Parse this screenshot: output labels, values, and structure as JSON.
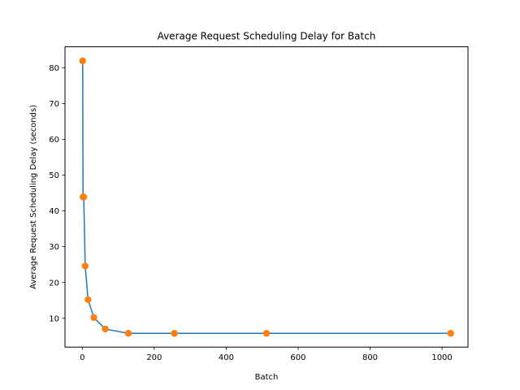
{
  "chart_data": {
    "type": "line",
    "title": "Average Request Scheduling Delay for Batch",
    "xlabel": "Batch",
    "ylabel": "Average Request Scheduling Delay (seconds)",
    "xlim": [
      -48.15,
      1072.15
    ],
    "ylim": [
      1.95,
      85.85
    ],
    "xticks": [
      0,
      200,
      400,
      600,
      800,
      1000
    ],
    "yticks": [
      10,
      20,
      30,
      40,
      50,
      60,
      70,
      80
    ],
    "grid": false,
    "series": [
      {
        "line_color": "#1f77b4",
        "marker_color": "#ff7f0e",
        "x": [
          1,
          2,
          4,
          8,
          16,
          32,
          64,
          128,
          256,
          512,
          1024
        ],
        "y": [
          81.9,
          43.9,
          43.9,
          24.6,
          15.2,
          10.2,
          7.0,
          5.8,
          5.8,
          5.8,
          5.8
        ]
      }
    ]
  }
}
